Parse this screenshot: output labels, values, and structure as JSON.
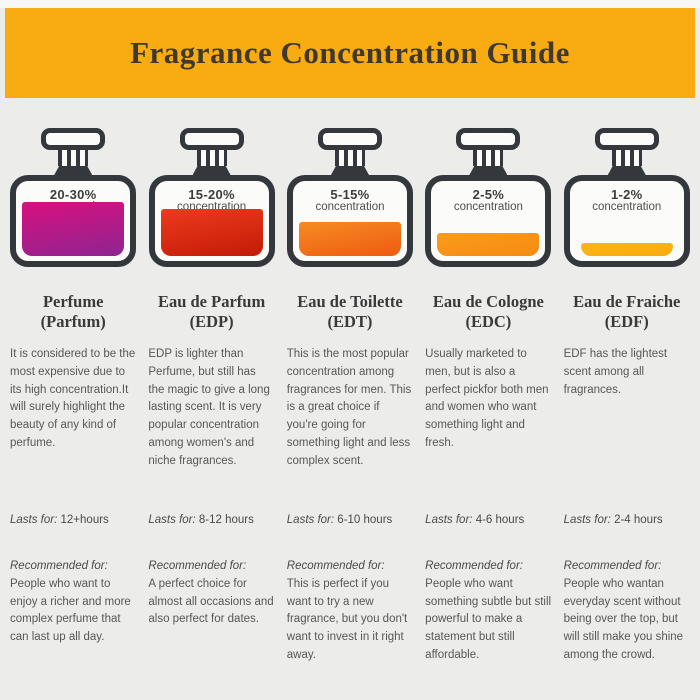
{
  "header": {
    "title": "Fragrance Concentration Guide"
  },
  "labels": {
    "lasts_for": "Lasts for:",
    "recommended_for": "Recommended for:",
    "concentration_word": "concentration"
  },
  "colors": {
    "banner_bg": "#F9AB12",
    "banner_text": "#3E392B",
    "page_background": "#ECECEA",
    "bottle_outline": "#34383D"
  },
  "columns": [
    {
      "name": "Perfume",
      "abbr": "(Parfum)",
      "concentration": "20-30%",
      "liquid_top": "#D8107F",
      "liquid_bottom": "#8E2590",
      "liquid_height": 54,
      "liquid_inset": 6,
      "description": "It is considered to be the most expensive due to its high concentration.It will surely highlight the beauty of any kind of perfume.",
      "lasts_for": "12+hours",
      "recommended_for": "People who want to enjoy a richer and more complex perfume that can last up all day."
    },
    {
      "name": "Eau de Parfum",
      "abbr": "(EDP)",
      "concentration": "15-20%",
      "liquid_top": "#EC3B1E",
      "liquid_bottom": "#C31B06",
      "liquid_height": 47,
      "liquid_inset": 6,
      "description": "EDP is lighter than Perfume, but still has the magic to give a long lasting scent. It is very popular concentration among women's and niche fragrances.",
      "lasts_for": "8-12 hours",
      "recommended_for": "A perfect choice for almost all occasions and also perfect for dates."
    },
    {
      "name": "Eau de Toilette",
      "abbr": "(EDT)",
      "concentration": "5-15%",
      "liquid_top": "#F68C23",
      "liquid_bottom": "#EE5A0F",
      "liquid_height": 34,
      "liquid_inset": 6,
      "description": "This is the most popular concentration among fragrances for men. This is a great choice if you're going for something light and less complex scent.",
      "lasts_for": "6-10 hours",
      "recommended_for": "This is perfect if you want to try a new fragrance, but you don't want to invest in it right away."
    },
    {
      "name": "Eau de Cologne",
      "abbr": "(EDC)",
      "concentration": "2-5%",
      "liquid_top": "#F99D1C",
      "liquid_bottom": "#F68A12",
      "liquid_height": 23,
      "liquid_inset": 6,
      "description": "Usually marketed to men, but is also a perfect pickfor both men and women who want something light and fresh.",
      "lasts_for": "4-6 hours",
      "recommended_for": "People who want something subtle but still powerful to make a statement but still affordable."
    },
    {
      "name": "Eau de Fraiche",
      "abbr": "(EDF)",
      "concentration": "1-2%",
      "liquid_top": "#FBB414",
      "liquid_bottom": "#F9AC0D",
      "liquid_height": 13,
      "liquid_inset": 11,
      "description": "EDF has the lightest scent among all fragrances.",
      "lasts_for": "2-4 hours",
      "recommended_for": "People who wantan everyday scent without being over the top, but will still make you shine among the crowd."
    }
  ]
}
